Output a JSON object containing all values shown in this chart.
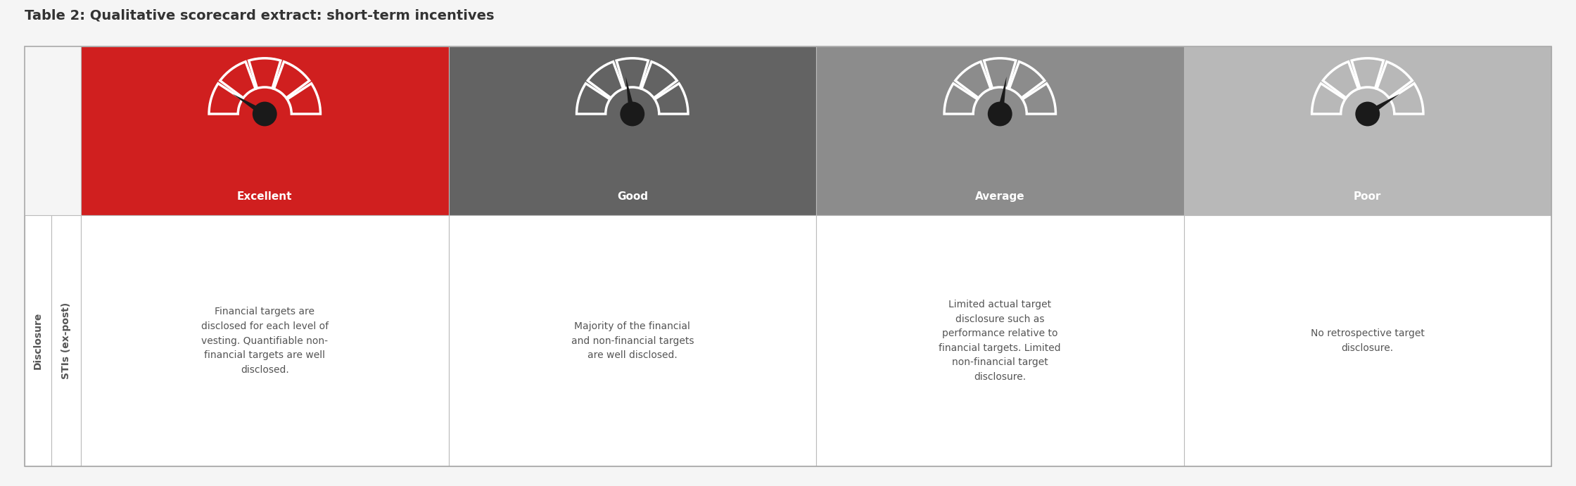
{
  "title": "Table 2: Qualitative scorecard extract: short-term incentives",
  "title_fontsize": 14,
  "background_color": "#f5f5f5",
  "categories": [
    "Excellent",
    "Good",
    "Average",
    "Poor"
  ],
  "cat_colors": [
    "#d01f1f",
    "#636363",
    "#8c8c8c",
    "#b8b8b8"
  ],
  "descriptions": [
    "Financial targets are\ndisclosed for each level of\nvesting. Quantifiable non-\nfinancial targets are well\ndisclosed.",
    "Majority of the financial\nand non-financial targets\nare well disclosed.",
    "Limited actual target\ndisclosure such as\nperformance relative to\nfinancial targets. Limited\nnon-financial target\ndisclosure.",
    "No retrospective target\ndisclosure."
  ],
  "gauge_needle_angles_deg": [
    148,
    100,
    80,
    32
  ],
  "row_label_1": "Disclosure",
  "row_label_2": "STIs (ex-post)",
  "border_color": "#bbbbbb",
  "text_color": "#555555",
  "desc_fontsize": 10,
  "label_fontsize": 10,
  "cat_fontsize": 11
}
